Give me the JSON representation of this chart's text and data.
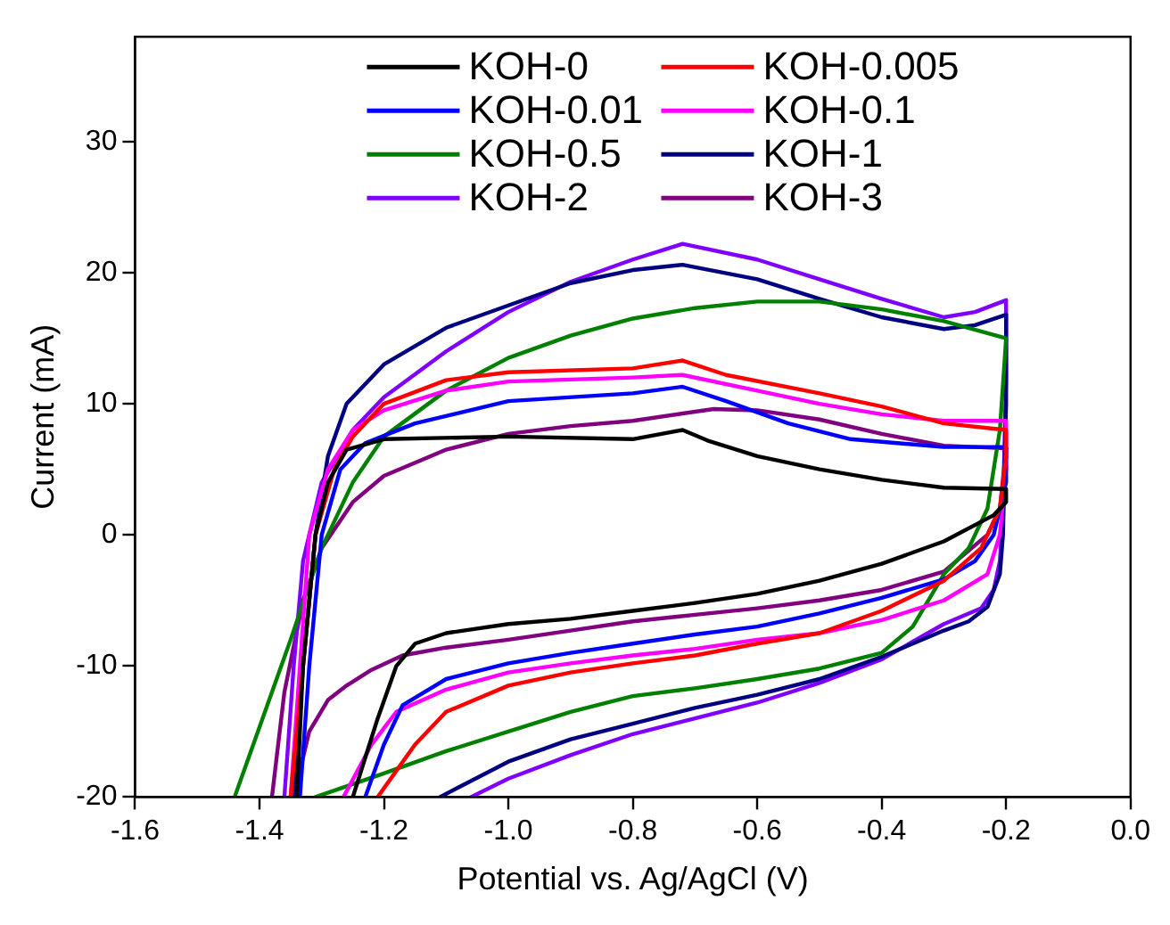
{
  "chart_data": {
    "type": "line",
    "xlabel": "Potential vs. Ag/AgCl (V)",
    "ylabel": "Current (mA)",
    "xlim": [
      -1.6,
      0
    ],
    "ylim": [
      -20,
      38
    ],
    "xticks": [
      -1.6,
      -1.4,
      -1.2,
      {
        "value": -1,
        "label": "-1.0"
      },
      -0.8,
      -0.6,
      -0.4,
      -0.2,
      {
        "value": 0,
        "label": "0.0"
      }
    ],
    "yticks": [
      -20,
      -10,
      0,
      10,
      20,
      30
    ],
    "grid": false,
    "legend": "top",
    "marker": "none",
    "line_style": "solid",
    "series": [
      {
        "name": "KOH-0",
        "color": "#000000",
        "x": [
          -1.34,
          -1.33,
          -1.31,
          -1.29,
          -1.26,
          -1.2,
          -1.0,
          -0.8,
          -0.72,
          -0.68,
          -0.6,
          -0.5,
          -0.4,
          -0.3,
          -0.2,
          -0.2,
          -0.22,
          -0.3,
          -0.4,
          -0.5,
          -0.6,
          -0.7,
          -0.8,
          -0.9,
          -1.0,
          -1.1,
          -1.15,
          -1.18,
          -1.21,
          -1.23,
          -1.25
        ],
        "values": [
          -20,
          -10,
          0,
          4,
          6.5,
          7.3,
          7.5,
          7.3,
          8.0,
          7.2,
          6.0,
          5.0,
          4.2,
          3.6,
          3.5,
          2.5,
          1.5,
          -0.5,
          -2.2,
          -3.5,
          -4.5,
          -5.2,
          -5.8,
          -6.4,
          -6.8,
          -7.5,
          -8.3,
          -10,
          -14,
          -17,
          -20
        ]
      },
      {
        "name": "KOH-0.005",
        "color": "#ff0000",
        "x": [
          -1.35,
          -1.33,
          -1.31,
          -1.28,
          -1.25,
          -1.2,
          -1.1,
          -1.0,
          -0.8,
          -0.72,
          -0.65,
          -0.5,
          -0.4,
          -0.3,
          -0.2,
          -0.2,
          -0.21,
          -0.24,
          -0.3,
          -0.4,
          -0.5,
          -0.6,
          -0.7,
          -0.8,
          -0.9,
          -1.0,
          -1.1,
          -1.15,
          -1.21
        ],
        "values": [
          -20,
          -10,
          0,
          5,
          7.5,
          10,
          11.8,
          12.4,
          12.7,
          13.3,
          12.2,
          10.8,
          9.8,
          8.5,
          8.0,
          6,
          2,
          -1,
          -3.5,
          -5.8,
          -7.5,
          -8.3,
          -9.2,
          -9.8,
          -10.5,
          -11.5,
          -13.5,
          -16,
          -20
        ]
      },
      {
        "name": "KOH-0.01",
        "color": "#0000ff",
        "x": [
          -1.335,
          -1.32,
          -1.3,
          -1.27,
          -1.23,
          -1.15,
          -1.0,
          -0.8,
          -0.72,
          -0.65,
          -0.55,
          -0.45,
          -0.3,
          -0.2,
          -0.2,
          -0.22,
          -0.25,
          -0.3,
          -0.4,
          -0.5,
          -0.6,
          -0.7,
          -0.8,
          -0.9,
          -1.0,
          -1.1,
          -1.17,
          -1.2,
          -1.23
        ],
        "values": [
          -20,
          -10,
          0,
          5,
          7,
          8.5,
          10.2,
          10.8,
          11.3,
          10.2,
          8.5,
          7.3,
          6.7,
          6.7,
          4,
          0,
          -2,
          -3.4,
          -4.8,
          -6,
          -7,
          -7.6,
          -8.3,
          -9,
          -9.8,
          -11,
          -13,
          -16,
          -20
        ]
      },
      {
        "name": "KOH-0.1",
        "color": "#ff00ff",
        "x": [
          -1.35,
          -1.335,
          -1.32,
          -1.29,
          -1.25,
          -1.2,
          -1.1,
          -1.0,
          -0.8,
          -0.72,
          -0.6,
          -0.5,
          -0.4,
          -0.3,
          -0.2,
          -0.2,
          -0.21,
          -0.23,
          -0.3,
          -0.4,
          -0.5,
          -0.6,
          -0.7,
          -0.8,
          -0.9,
          -1.0,
          -1.1,
          -1.18,
          -1.22,
          -1.265
        ],
        "values": [
          -20,
          -10,
          0,
          5,
          8,
          9.5,
          11,
          11.7,
          12.0,
          12.2,
          11,
          10,
          9.2,
          8.7,
          8.7,
          5,
          0,
          -3,
          -5,
          -6.5,
          -7.5,
          -8,
          -8.7,
          -9.2,
          -9.8,
          -10.5,
          -11.8,
          -13.5,
          -16,
          -20
        ]
      },
      {
        "name": "KOH-0.5",
        "color": "#008000",
        "x": [
          -1.44,
          -1.35,
          -1.3,
          -1.25,
          -1.2,
          -1.1,
          -1.0,
          -0.9,
          -0.8,
          -0.7,
          -0.6,
          -0.5,
          -0.4,
          -0.3,
          -0.2,
          -0.21,
          -0.23,
          -0.26,
          -0.3,
          -0.35,
          -0.4,
          -0.5,
          -0.6,
          -0.7,
          -0.8,
          -0.9,
          -1.0,
          -1.1,
          -1.2,
          -1.31
        ],
        "values": [
          -20,
          -8,
          -1,
          4,
          7.5,
          11,
          13.5,
          15.2,
          16.5,
          17.3,
          17.8,
          17.8,
          17.2,
          16.3,
          15,
          8,
          2,
          -1,
          -3,
          -7,
          -9,
          -10.2,
          -11,
          -11.7,
          -12.3,
          -13.5,
          -15,
          -16.5,
          -18.2,
          -20
        ]
      },
      {
        "name": "KOH-1",
        "color": "#000080",
        "x": [
          -1.345,
          -1.33,
          -1.31,
          -1.29,
          -1.26,
          -1.2,
          -1.1,
          -1.0,
          -0.9,
          -0.8,
          -0.72,
          -0.6,
          -0.5,
          -0.4,
          -0.3,
          -0.25,
          -0.2,
          -0.2,
          -0.205,
          -0.21,
          -0.23,
          -0.26,
          -0.3,
          -0.4,
          -0.5,
          -0.6,
          -0.7,
          -0.8,
          -0.9,
          -1.0,
          -1.11
        ],
        "values": [
          -20,
          -10,
          0,
          6,
          10,
          13,
          15.8,
          17.5,
          19.2,
          20.2,
          20.6,
          19.5,
          18,
          16.6,
          15.7,
          16,
          16.8,
          10,
          0,
          -3,
          -5.5,
          -6.6,
          -7.3,
          -9.3,
          -11,
          -12.2,
          -13.2,
          -14.4,
          -15.6,
          -17.3,
          -20
        ]
      },
      {
        "name": "KOH-2",
        "color": "#8000ff",
        "x": [
          -1.36,
          -1.345,
          -1.33,
          -1.3,
          -1.25,
          -1.2,
          -1.1,
          -1.0,
          -0.9,
          -0.8,
          -0.72,
          -0.6,
          -0.5,
          -0.4,
          -0.3,
          -0.25,
          -0.2,
          -0.2,
          -0.205,
          -0.21,
          -0.22,
          -0.24,
          -0.3,
          -0.4,
          -0.5,
          -0.6,
          -0.7,
          -0.8,
          -0.9,
          -1.0,
          -1.06
        ],
        "values": [
          -20,
          -10,
          -2,
          4,
          8,
          10.5,
          14,
          17,
          19.3,
          21,
          22.2,
          21,
          19.5,
          18,
          16.6,
          17,
          17.9,
          12,
          2,
          -2,
          -4.2,
          -5.6,
          -6.8,
          -9.5,
          -11.3,
          -12.8,
          -14,
          -15.2,
          -16.8,
          -18.6,
          -20
        ]
      },
      {
        "name": "KOH-3",
        "color": "#800080",
        "x": [
          -1.38,
          -1.36,
          -1.33,
          -1.3,
          -1.25,
          -1.2,
          -1.1,
          -1.0,
          -0.9,
          -0.8,
          -0.67,
          -0.6,
          -0.5,
          -0.4,
          -0.3,
          -0.2,
          -0.21,
          -0.23,
          -0.3,
          -0.4,
          -0.5,
          -0.6,
          -0.7,
          -0.8,
          -0.9,
          -1.0,
          -1.1,
          -1.17,
          -1.22,
          -1.26,
          -1.29,
          -1.32,
          -1.345
        ],
        "values": [
          -20,
          -12,
          -5,
          -1,
          2.5,
          4.5,
          6.5,
          7.7,
          8.3,
          8.7,
          9.6,
          9.5,
          8.8,
          7.7,
          6.8,
          6.6,
          2,
          0,
          -2.8,
          -4.2,
          -5,
          -5.6,
          -6.1,
          -6.6,
          -7.3,
          -8,
          -8.6,
          -9.2,
          -10.3,
          -11.5,
          -12.6,
          -15,
          -20
        ]
      }
    ]
  }
}
